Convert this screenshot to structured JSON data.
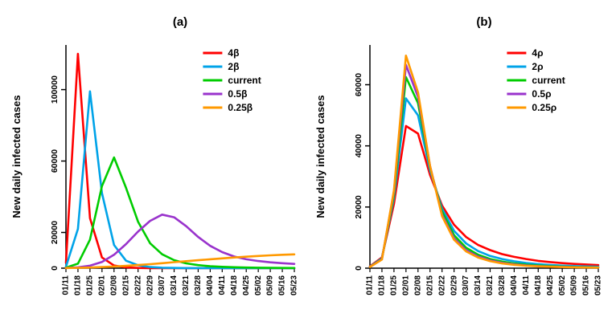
{
  "figure": {
    "background": "#ffffff",
    "axis_color": "#000000"
  },
  "chart_data": [
    {
      "id": "a",
      "type": "line",
      "title": "(a)",
      "xlabel": "",
      "ylabel": "New daily infected cases",
      "x_labels": [
        "01/11",
        "01/18",
        "01/25",
        "02/01",
        "02/08",
        "02/15",
        "02/22",
        "02/29",
        "03/07",
        "03/14",
        "03/21",
        "03/28",
        "04/04",
        "04/11",
        "04/18",
        "04/25",
        "05/02",
        "05/09",
        "05/16",
        "05/23"
      ],
      "ylim": [
        0,
        125000
      ],
      "yticks": [
        0,
        20000,
        60000,
        100000
      ],
      "grid": false,
      "legend_position": "top-right",
      "series": [
        {
          "name": "4β",
          "color": "#FF0000",
          "values": [
            3000,
            120000,
            28000,
            6000,
            1500,
            450,
            150,
            60,
            25,
            10,
            5,
            2,
            1,
            0,
            0,
            0,
            0,
            0,
            0,
            0
          ]
        },
        {
          "name": "2β",
          "color": "#00A3E8",
          "values": [
            800,
            22000,
            99000,
            42000,
            13000,
            4200,
            1600,
            650,
            280,
            120,
            55,
            25,
            12,
            6,
            3,
            1,
            0,
            0,
            0,
            0
          ]
        },
        {
          "name": "current",
          "color": "#00CC00",
          "values": [
            300,
            2500,
            16000,
            46000,
            62000,
            45000,
            26000,
            14000,
            7800,
            4500,
            2700,
            1700,
            1100,
            750,
            520,
            370,
            270,
            200,
            150,
            110
          ]
        },
        {
          "name": "0.5β",
          "color": "#9933CC",
          "values": [
            150,
            500,
            1400,
            3500,
            7500,
            13500,
            20500,
            26500,
            30000,
            28500,
            23500,
            17500,
            12500,
            9000,
            6500,
            5000,
            4000,
            3300,
            2800,
            2400
          ]
        },
        {
          "name": "0.25β",
          "color": "#FF9900",
          "values": [
            80,
            200,
            380,
            620,
            930,
            1300,
            1750,
            2250,
            2800,
            3350,
            3900,
            4450,
            5000,
            5500,
            6000,
            6450,
            6850,
            7200,
            7500,
            7750
          ]
        }
      ]
    },
    {
      "id": "b",
      "type": "line",
      "title": "(b)",
      "xlabel": "",
      "ylabel": "New daily infected cases",
      "x_labels": [
        "01/11",
        "01/18",
        "01/25",
        "02/01",
        "02/08",
        "02/15",
        "02/22",
        "02/29",
        "03/07",
        "03/14",
        "03/21",
        "03/28",
        "04/04",
        "04/11",
        "04/18",
        "04/25",
        "05/02",
        "05/09",
        "05/16",
        "05/23"
      ],
      "ylim": [
        0,
        73000
      ],
      "yticks": [
        0,
        20000,
        40000,
        60000
      ],
      "grid": false,
      "legend_position": "top-right",
      "series": [
        {
          "name": "4ρ",
          "color": "#FF0000",
          "values": [
            600,
            3500,
            21000,
            46500,
            44000,
            30500,
            20500,
            14200,
            10200,
            7600,
            5900,
            4600,
            3700,
            3000,
            2400,
            2000,
            1650,
            1400,
            1200,
            1000
          ]
        },
        {
          "name": "2ρ",
          "color": "#00A3E8",
          "values": [
            500,
            3200,
            23000,
            55500,
            50000,
            32000,
            19500,
            12200,
            8100,
            5600,
            4000,
            3000,
            2250,
            1700,
            1350,
            1050,
            850,
            700,
            570,
            470
          ]
        },
        {
          "name": "current",
          "color": "#00CC00",
          "values": [
            450,
            3000,
            24000,
            62500,
            54000,
            33000,
            18500,
            10800,
            6700,
            4400,
            3000,
            2150,
            1550,
            1150,
            870,
            670,
            520,
            410,
            330,
            270
          ]
        },
        {
          "name": "0.5ρ",
          "color": "#9933CC",
          "values": [
            420,
            2900,
            25000,
            66500,
            56000,
            33500,
            17500,
            9800,
            5900,
            3800,
            2550,
            1750,
            1250,
            920,
            690,
            530,
            410,
            330,
            260,
            210
          ]
        },
        {
          "name": "0.25ρ",
          "color": "#FF9900",
          "values": [
            400,
            2800,
            25500,
            69500,
            57500,
            33500,
            17000,
            9300,
            5500,
            3500,
            2300,
            1550,
            1100,
            800,
            600,
            460,
            360,
            280,
            220,
            180
          ]
        }
      ]
    }
  ]
}
